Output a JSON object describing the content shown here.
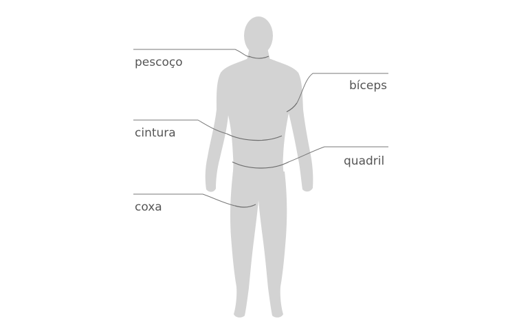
{
  "colors": {
    "figure": "#d3d3d3",
    "line": "#777777",
    "text": "#555555",
    "background": "#ffffff"
  },
  "labels": {
    "neck": "pescoço",
    "biceps": "bíceps",
    "waist": "cintura",
    "hip": "quadril",
    "thigh": "coxa"
  }
}
